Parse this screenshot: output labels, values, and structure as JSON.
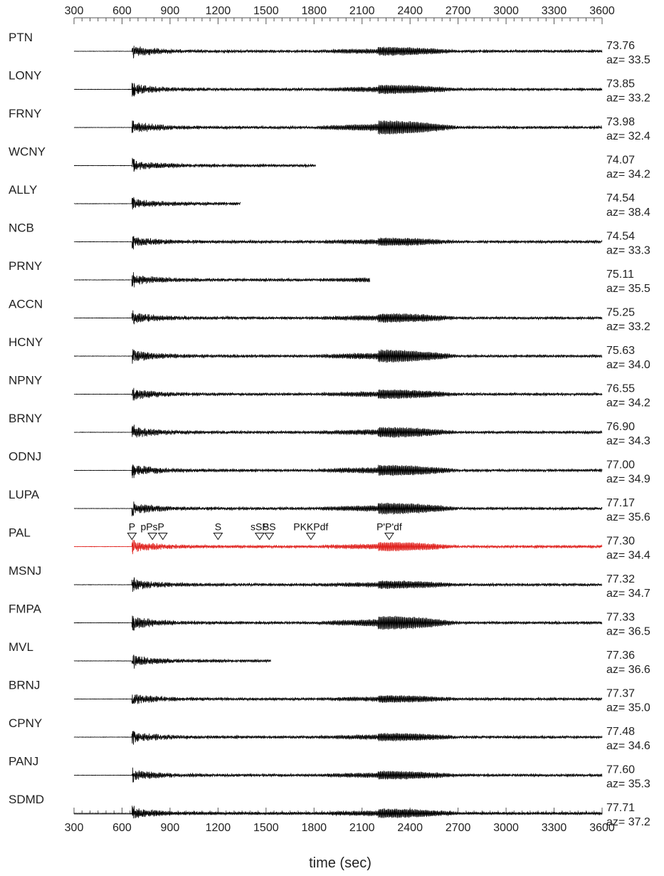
{
  "chart_data": {
    "type": "line",
    "subtype": "seismogram-record-section",
    "xlabel": "time (sec)",
    "ylabel": "",
    "xlim": [
      300,
      3600
    ],
    "x_ticks": [
      300,
      600,
      900,
      1200,
      1500,
      1800,
      2100,
      2400,
      2700,
      3000,
      3300,
      3600
    ],
    "x_ticks_top": true,
    "x_ticks_bottom": true,
    "grid": false,
    "legend": "none",
    "colors": {
      "trace": "#000000",
      "highlight": "#e0201c",
      "axis": "#555555"
    },
    "series": [
      {
        "name": "PTN",
        "distance": "73.76",
        "azimuth": "az= 33.5",
        "end_time": 3600,
        "late_amp": 0.55,
        "highlight": false
      },
      {
        "name": "LONY",
        "distance": "73.85",
        "azimuth": "az= 33.2",
        "end_time": 3600,
        "late_amp": 0.6,
        "highlight": false
      },
      {
        "name": "FRNY",
        "distance": "73.98",
        "azimuth": "az= 32.4",
        "end_time": 3600,
        "late_amp": 1.0,
        "highlight": false
      },
      {
        "name": "WCNY",
        "distance": "74.07",
        "azimuth": "az= 34.2",
        "end_time": 1810,
        "late_amp": 0.5,
        "highlight": false
      },
      {
        "name": "ALLY",
        "distance": "74.54",
        "azimuth": "az= 38.4",
        "end_time": 1340,
        "late_amp": 0.3,
        "highlight": false
      },
      {
        "name": "NCB",
        "distance": "74.54",
        "azimuth": "az= 33.3",
        "end_time": 3600,
        "late_amp": 0.5,
        "highlight": false
      },
      {
        "name": "PRNY",
        "distance": "75.11",
        "azimuth": "az= 35.5",
        "end_time": 2150,
        "late_amp": 0.45,
        "highlight": false
      },
      {
        "name": "ACCN",
        "distance": "75.25",
        "azimuth": "az= 33.2",
        "end_time": 3600,
        "late_amp": 0.6,
        "highlight": false
      },
      {
        "name": "HCNY",
        "distance": "75.63",
        "azimuth": "az= 34.0",
        "end_time": 3600,
        "late_amp": 0.9,
        "highlight": false
      },
      {
        "name": "NPNY",
        "distance": "76.55",
        "azimuth": "az= 34.2",
        "end_time": 3600,
        "late_amp": 0.6,
        "highlight": false
      },
      {
        "name": "BRNY",
        "distance": "76.90",
        "azimuth": "az= 34.3",
        "end_time": 3600,
        "late_amp": 0.7,
        "highlight": false
      },
      {
        "name": "ODNJ",
        "distance": "77.00",
        "azimuth": "az= 34.9",
        "end_time": 3600,
        "late_amp": 0.75,
        "highlight": false
      },
      {
        "name": "LUPA",
        "distance": "77.17",
        "azimuth": "az= 35.6",
        "end_time": 3600,
        "late_amp": 0.8,
        "highlight": false
      },
      {
        "name": "PAL",
        "distance": "77.30",
        "azimuth": "az= 34.4",
        "end_time": 3600,
        "late_amp": 0.6,
        "highlight": true
      },
      {
        "name": "MSNJ",
        "distance": "77.32",
        "azimuth": "az= 34.7",
        "end_time": 3600,
        "late_amp": 0.5,
        "highlight": false
      },
      {
        "name": "FMPA",
        "distance": "77.33",
        "azimuth": "az= 36.5",
        "end_time": 3600,
        "late_amp": 1.0,
        "highlight": false
      },
      {
        "name": "MVL",
        "distance": "77.36",
        "azimuth": "az= 36.6",
        "end_time": 1530,
        "late_amp": 0.5,
        "highlight": false
      },
      {
        "name": "BRNJ",
        "distance": "77.37",
        "azimuth": "az= 35.0",
        "end_time": 3600,
        "late_amp": 0.45,
        "highlight": false
      },
      {
        "name": "CPNY",
        "distance": "77.48",
        "azimuth": "az= 34.6",
        "end_time": 3600,
        "late_amp": 0.5,
        "highlight": false
      },
      {
        "name": "PANJ",
        "distance": "77.60",
        "azimuth": "az= 35.3",
        "end_time": 3600,
        "late_amp": 0.55,
        "highlight": false
      },
      {
        "name": "SDMD",
        "distance": "77.71",
        "azimuth": "az= 37.2",
        "end_time": 3600,
        "late_amp": 0.6,
        "highlight": false
      }
    ],
    "phase_picks": [
      {
        "label": "P",
        "time": 662
      },
      {
        "label": "pPsP",
        "time": 790
      },
      {
        "label": "",
        "time": 855
      },
      {
        "label": "S",
        "time": 1200
      },
      {
        "label": "sSP",
        "time": 1460
      },
      {
        "label": "SS",
        "time": 1520
      },
      {
        "label": "PKKPdf",
        "time": 1780
      },
      {
        "label": "P'P'df",
        "time": 2270
      }
    ],
    "phase_pick_station": "PAL"
  }
}
